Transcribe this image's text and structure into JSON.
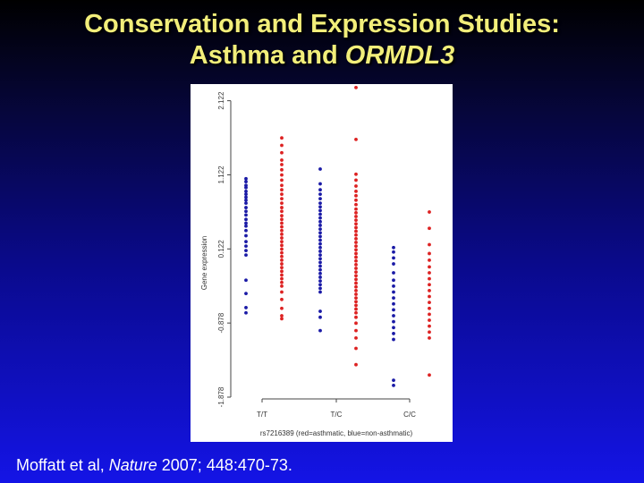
{
  "slide": {
    "title_line1": "Conservation and Expression Studies:",
    "title_line2_prefix": "Asthma and ",
    "title_line2_gene": "ORMDL3",
    "citation_authors": "Moffatt et al, ",
    "citation_journal": "Nature",
    "citation_rest": " 2007; 448:470-73."
  },
  "chart_data": {
    "type": "scatter",
    "ylabel": "Gene expression",
    "xlabel": "rs7216389 (red=asthmatic, blue=non-asthmatic)",
    "categories": [
      "T/T",
      "T/C",
      "C/C"
    ],
    "yticks": [
      "2.122",
      "1.122",
      "0.122",
      "-0.878",
      "-1.878"
    ],
    "ylim": [
      -1.878,
      2.25
    ],
    "colors": {
      "asthmatic": "#dd2222",
      "non_asthmatic": "#1a1aa6"
    },
    "series": [
      {
        "color_key": "non_asthmatic",
        "category": "T/T",
        "values": [
          1.07,
          1.03,
          0.98,
          0.95,
          0.9,
          0.86,
          0.82,
          0.78,
          0.74,
          0.68,
          0.63,
          0.58,
          0.52,
          0.47,
          0.43,
          0.37,
          0.3,
          0.22,
          0.16,
          0.1,
          0.04,
          -0.3,
          -0.48,
          -0.67,
          -0.74
        ]
      },
      {
        "color_key": "asthmatic",
        "category": "T/T",
        "values": [
          1.62,
          1.52,
          1.42,
          1.32,
          1.26,
          1.19,
          1.12,
          1.05,
          0.98,
          0.92,
          0.86,
          0.8,
          0.74,
          0.68,
          0.63,
          0.57,
          0.52,
          0.47,
          0.42,
          0.37,
          0.32,
          0.27,
          0.22,
          0.17,
          0.12,
          0.07,
          0.02,
          -0.03,
          -0.08,
          -0.13,
          -0.18,
          -0.23,
          -0.28,
          -0.33,
          -0.38,
          -0.46,
          -0.56,
          -0.68,
          -0.78,
          -0.82
        ]
      },
      {
        "color_key": "non_asthmatic",
        "category": "T/C",
        "values": [
          1.2,
          1.0,
          0.92,
          0.86,
          0.8,
          0.74,
          0.69,
          0.64,
          0.59,
          0.54,
          0.49,
          0.44,
          0.39,
          0.34,
          0.29,
          0.24,
          0.19,
          0.14,
          0.09,
          0.04,
          -0.01,
          -0.06,
          -0.11,
          -0.16,
          -0.21,
          -0.26,
          -0.31,
          -0.36,
          -0.41,
          -0.46,
          -0.72,
          -0.8,
          -0.98
        ]
      },
      {
        "color_key": "asthmatic",
        "category": "T/C",
        "values": [
          2.3,
          1.6,
          1.13,
          1.05,
          0.97,
          0.9,
          0.84,
          0.78,
          0.72,
          0.66,
          0.61,
          0.56,
          0.51,
          0.46,
          0.41,
          0.36,
          0.31,
          0.26,
          0.21,
          0.16,
          0.11,
          0.06,
          0.01,
          -0.04,
          -0.09,
          -0.14,
          -0.19,
          -0.24,
          -0.29,
          -0.34,
          -0.39,
          -0.44,
          -0.49,
          -0.54,
          -0.59,
          -0.64,
          -0.69,
          -0.74,
          -0.8,
          -0.88,
          -0.98,
          -1.08,
          -1.22,
          -1.44
        ]
      },
      {
        "color_key": "non_asthmatic",
        "category": "C/C",
        "values": [
          0.14,
          0.08,
          0.0,
          -0.08,
          -0.2,
          -0.3,
          -0.38,
          -0.46,
          -0.54,
          -0.62,
          -0.7,
          -0.78,
          -0.86,
          -0.94,
          -1.02,
          -1.1,
          -1.65,
          -1.72
        ]
      },
      {
        "color_key": "asthmatic",
        "category": "C/C",
        "values": [
          0.62,
          0.4,
          0.18,
          0.06,
          -0.03,
          -0.12,
          -0.2,
          -0.28,
          -0.36,
          -0.44,
          -0.52,
          -0.6,
          -0.68,
          -0.76,
          -0.84,
          -0.92,
          -1.0,
          -1.08,
          -1.58
        ]
      }
    ]
  }
}
